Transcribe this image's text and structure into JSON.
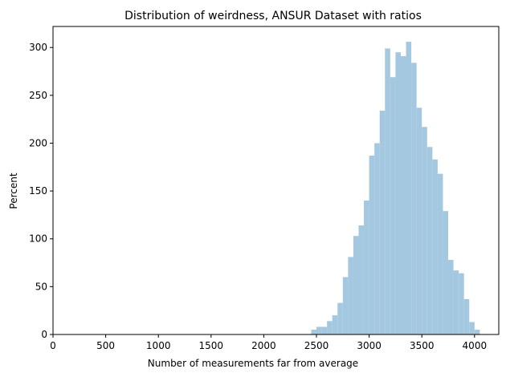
{
  "chart_data": {
    "type": "bar",
    "title": "Distribution of weirdness, ANSUR Dataset with ratios",
    "xlabel": "Number of measurements far from average",
    "ylabel": "Percent",
    "xlim": [
      0,
      4230
    ],
    "ylim": [
      0,
      322
    ],
    "xticks": [
      0,
      500,
      1000,
      1500,
      2000,
      2500,
      3000,
      3500,
      4000
    ],
    "yticks": [
      0,
      50,
      100,
      150,
      200,
      250,
      300
    ],
    "bar_color": "#a4c8e0",
    "grid": false,
    "bin_width": 50,
    "bins": [
      {
        "x0": 2450,
        "value": 5
      },
      {
        "x0": 2500,
        "value": 8
      },
      {
        "x0": 2550,
        "value": 8
      },
      {
        "x0": 2600,
        "value": 14
      },
      {
        "x0": 2650,
        "value": 20
      },
      {
        "x0": 2700,
        "value": 33
      },
      {
        "x0": 2750,
        "value": 60
      },
      {
        "x0": 2800,
        "value": 81
      },
      {
        "x0": 2850,
        "value": 103
      },
      {
        "x0": 2900,
        "value": 114
      },
      {
        "x0": 2950,
        "value": 140
      },
      {
        "x0": 3000,
        "value": 187
      },
      {
        "x0": 3050,
        "value": 200
      },
      {
        "x0": 3100,
        "value": 234
      },
      {
        "x0": 3150,
        "value": 299
      },
      {
        "x0": 3200,
        "value": 269
      },
      {
        "x0": 3250,
        "value": 295
      },
      {
        "x0": 3300,
        "value": 291
      },
      {
        "x0": 3350,
        "value": 306
      },
      {
        "x0": 3400,
        "value": 284
      },
      {
        "x0": 3450,
        "value": 237
      },
      {
        "x0": 3500,
        "value": 217
      },
      {
        "x0": 3550,
        "value": 196
      },
      {
        "x0": 3600,
        "value": 183
      },
      {
        "x0": 3650,
        "value": 168
      },
      {
        "x0": 3700,
        "value": 129
      },
      {
        "x0": 3750,
        "value": 78
      },
      {
        "x0": 3800,
        "value": 67
      },
      {
        "x0": 3850,
        "value": 64
      },
      {
        "x0": 3900,
        "value": 37
      },
      {
        "x0": 3950,
        "value": 13
      },
      {
        "x0": 4000,
        "value": 5
      }
    ]
  }
}
